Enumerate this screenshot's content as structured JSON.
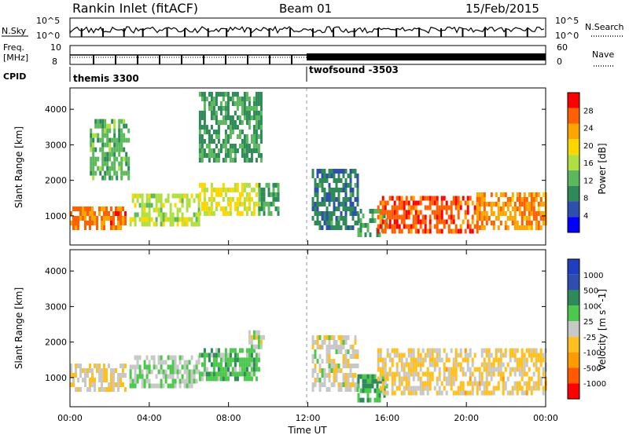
{
  "header": {
    "station": "Rankin Inlet (fitACF)",
    "beam": "Beam 01",
    "date": "15/Feb/2015"
  },
  "summary": {
    "nsky_label": "N.Sky",
    "nsky_ticks": [
      "10^5",
      "10^0"
    ],
    "nsearch_label": "N.Search",
    "nsearch_ticks": [
      "10^5",
      "10^0"
    ],
    "freq_label": "Freq.",
    "freq_unit": "[MHz]",
    "freq_ticks": [
      "10",
      "8"
    ],
    "nave_label": "Nave",
    "nave_ticks": [
      "60",
      "0"
    ],
    "cpid_label": "CPID",
    "cpid_segments": [
      {
        "name": "themis 3300",
        "start_hour": 0
      },
      {
        "name": "twofsound -3503",
        "start_hour": 12
      }
    ]
  },
  "axes": {
    "ylabel": "Slant Range [km]",
    "xlabel": "Time UT",
    "xticks": [
      "00:00",
      "04:00",
      "08:00",
      "12:00",
      "16:00",
      "20:00",
      "00:00"
    ],
    "yticks": [
      "1000",
      "2000",
      "3000",
      "4000"
    ]
  },
  "colors": {
    "power": [
      "#0000ff",
      "#2f4fb0",
      "#2e8b57",
      "#5cb85c",
      "#b0e040",
      "#ffd700",
      "#ffa500",
      "#ff6000",
      "#ff0000"
    ],
    "velocity": [
      "#ff0000",
      "#ff5a00",
      "#ff9a00",
      "#ffc020",
      "#c8c8c8",
      "#4cc84c",
      "#2e8b57",
      "#2f4fb0",
      "#1f3fbf"
    ]
  },
  "chart_data": [
    {
      "type": "heatmap",
      "panel": "power",
      "title": "",
      "xlabel": "Time UT",
      "ylabel": "Slant Range [km]",
      "xlim": [
        0,
        24
      ],
      "ylim": [
        180,
        4600
      ],
      "colorbar": {
        "label": "Power [dB]",
        "ticks": [
          "28",
          "24",
          "20",
          "16",
          "12",
          "8",
          "4"
        ],
        "range": [
          0,
          32
        ]
      },
      "regions": [
        {
          "t0": 0.0,
          "t1": 2.8,
          "r0": 600,
          "r1": 1200,
          "level": "strong",
          "value": 26
        },
        {
          "t0": 3.0,
          "t1": 6.5,
          "r0": 700,
          "r1": 1600,
          "level": "mid",
          "value": 16
        },
        {
          "t0": 6.5,
          "t1": 9.5,
          "r0": 1000,
          "r1": 1900,
          "level": "mid",
          "value": 18
        },
        {
          "t0": 9.5,
          "t1": 10.5,
          "r0": 1000,
          "r1": 1800,
          "level": "weak",
          "value": 10
        },
        {
          "t0": 12.2,
          "t1": 14.5,
          "r0": 600,
          "r1": 2300,
          "level": "weak",
          "value": 8
        },
        {
          "t0": 14.5,
          "t1": 16.0,
          "r0": 400,
          "r1": 1100,
          "level": "weak",
          "value": 10
        },
        {
          "t0": 15.5,
          "t1": 20.5,
          "r0": 500,
          "r1": 1500,
          "level": "strong",
          "value": 27
        },
        {
          "t0": 20.5,
          "t1": 24.0,
          "r0": 600,
          "r1": 1600,
          "level": "strong",
          "value": 24
        },
        {
          "t0": 1.0,
          "t1": 3.0,
          "r0": 2000,
          "r1": 3600,
          "level": "weak",
          "value": 12
        },
        {
          "t0": 6.5,
          "t1": 9.7,
          "r0": 2500,
          "r1": 4400,
          "level": "weak",
          "value": 10
        }
      ]
    },
    {
      "type": "heatmap",
      "panel": "velocity",
      "title": "",
      "xlabel": "Time UT",
      "ylabel": "Slant Range [km]",
      "xlim": [
        0,
        24
      ],
      "ylim": [
        180,
        4600
      ],
      "colorbar": {
        "label": "Velocity [m s^-1]",
        "ticks": [
          "1000",
          "500",
          "100",
          "25",
          "-25",
          "-100",
          "-500",
          "-1000"
        ],
        "range": [
          -1250,
          1250
        ]
      },
      "regions": [
        {
          "t0": 0.0,
          "t1": 2.8,
          "r0": 600,
          "r1": 1300,
          "level": "mixed",
          "value": -100
        },
        {
          "t0": 3.0,
          "t1": 6.5,
          "r0": 700,
          "r1": 1600,
          "level": "mixed",
          "value": 100
        },
        {
          "t0": 6.5,
          "t1": 9.5,
          "r0": 900,
          "r1": 1700,
          "level": "positive",
          "value": 300
        },
        {
          "t0": 9.0,
          "t1": 9.8,
          "r0": 1800,
          "r1": 2200,
          "level": "zero",
          "value": 0
        },
        {
          "t0": 12.2,
          "t1": 14.5,
          "r0": 600,
          "r1": 2100,
          "level": "mixed",
          "value": -50
        },
        {
          "t0": 14.5,
          "t1": 16.0,
          "r0": 300,
          "r1": 1000,
          "level": "positive",
          "value": 400
        },
        {
          "t0": 15.5,
          "t1": 24.0,
          "r0": 500,
          "r1": 1700,
          "level": "negative",
          "value": -200
        }
      ]
    }
  ]
}
